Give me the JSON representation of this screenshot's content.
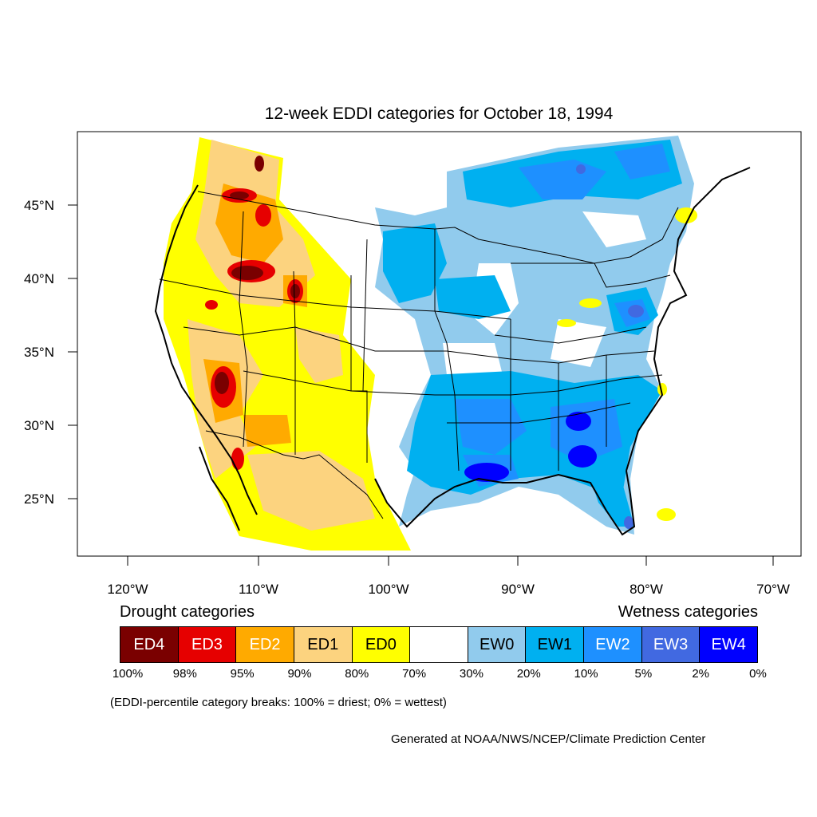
{
  "title": "12-week EDDI categories for October 18, 1994",
  "lat_labels": [
    "45°N",
    "40°N",
    "35°N",
    "30°N",
    "25°N"
  ],
  "lon_labels": [
    "120°W",
    "110°W",
    "100°W",
    "90°W",
    "80°W",
    "70°W"
  ],
  "legend": {
    "drought_label": "Drought categories",
    "wetness_label": "Wetness categories",
    "categories": [
      {
        "label": "ED4",
        "color": "#7a0000",
        "text_color": "#ffffff"
      },
      {
        "label": "ED3",
        "color": "#e60000",
        "text_color": "#ffffff"
      },
      {
        "label": "ED2",
        "color": "#ffaa00",
        "text_color": "#ffffff"
      },
      {
        "label": "ED1",
        "color": "#fcd37f",
        "text_color": "#000000"
      },
      {
        "label": "ED0",
        "color": "#ffff00",
        "text_color": "#000000"
      },
      {
        "label": "",
        "color": "#ffffff",
        "text_color": "#000000"
      },
      {
        "label": "EW0",
        "color": "#91cbed",
        "text_color": "#000000"
      },
      {
        "label": "EW1",
        "color": "#00b0f0",
        "text_color": "#000000"
      },
      {
        "label": "EW2",
        "color": "#1e90ff",
        "text_color": "#ffffff"
      },
      {
        "label": "EW3",
        "color": "#4169e1",
        "text_color": "#ffffff"
      },
      {
        "label": "EW4",
        "color": "#0000ff",
        "text_color": "#ffffff"
      }
    ],
    "breaks": [
      "100%",
      "98%",
      "95%",
      "90%",
      "80%",
      "70%",
      "30%",
      "20%",
      "10%",
      "5%",
      "2%",
      "0%"
    ]
  },
  "note": "(EDDI-percentile category breaks: 100% = driest; 0% = wettest)",
  "credit": "Generated at NOAA/NWS/NCEP/Climate Prediction Center"
}
